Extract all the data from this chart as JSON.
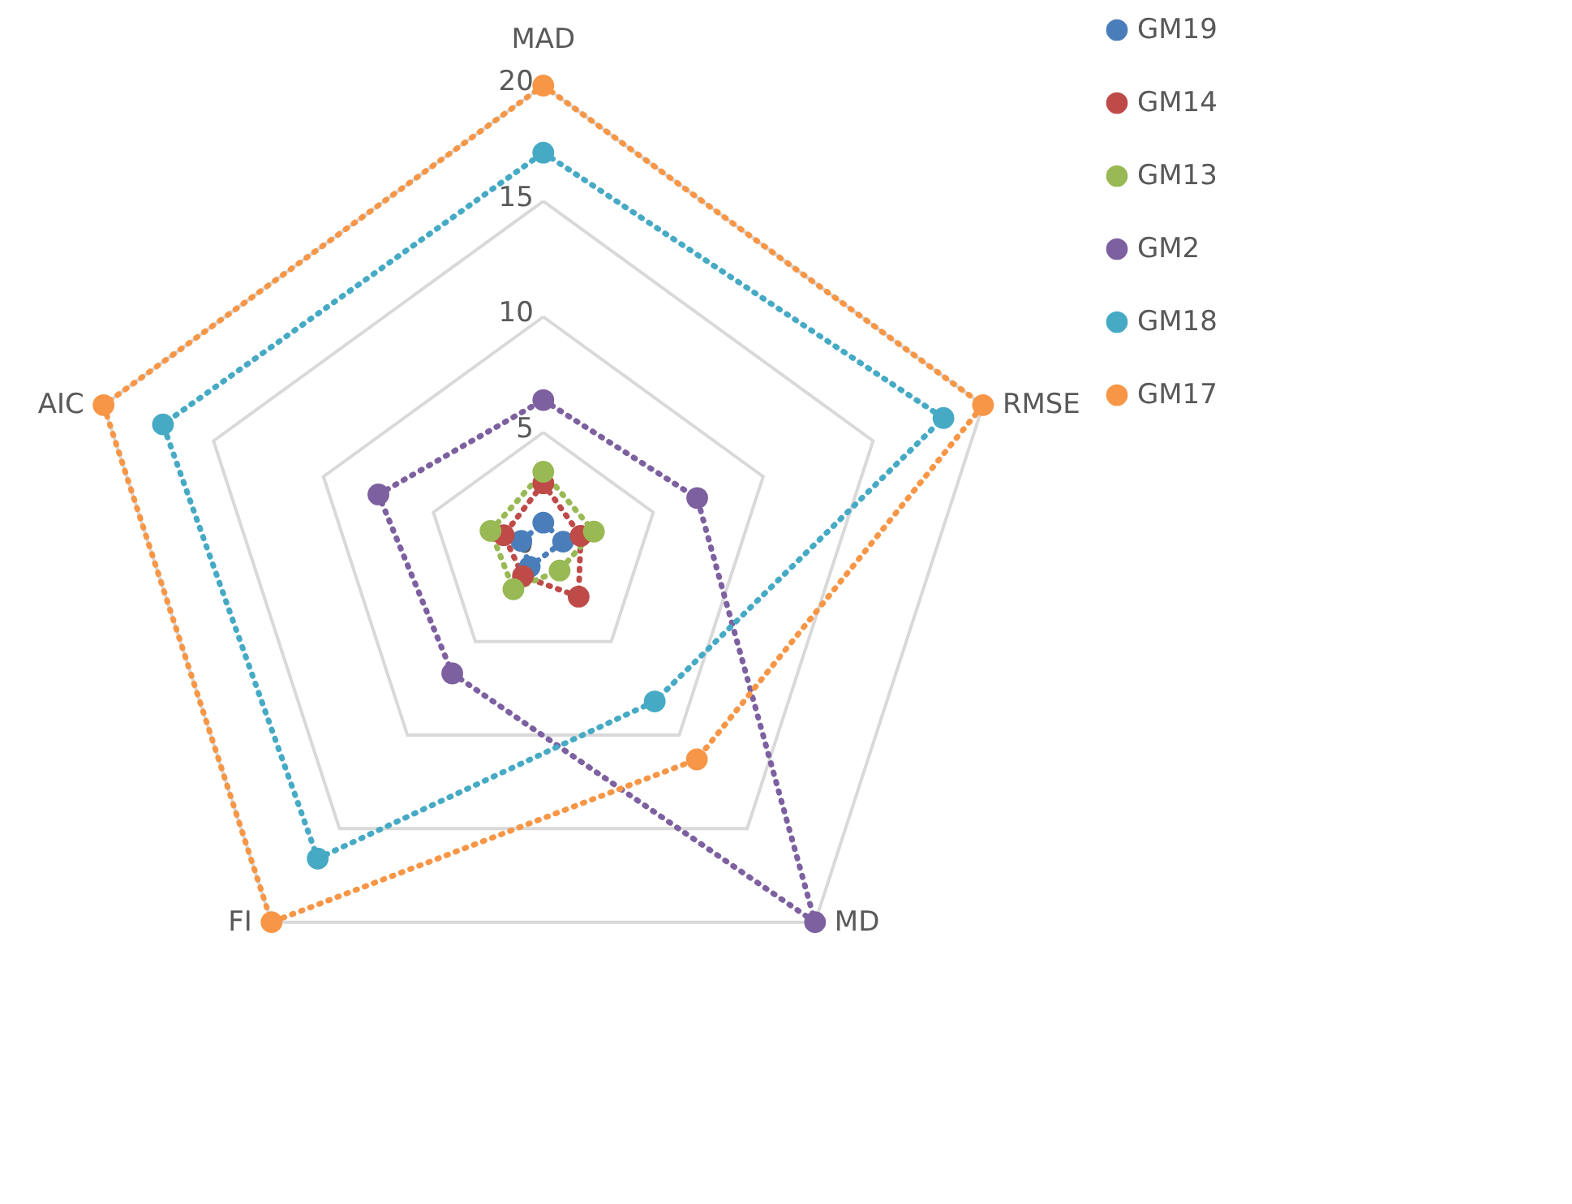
{
  "chart_data": {
    "type": "radar",
    "categories": [
      "MAD",
      "RMSE",
      "MD",
      "FI",
      "AIC"
    ],
    "series": [
      {
        "name": "GM19",
        "color": "#4a7ebb",
        "values": [
          1.1,
          0.9,
          null,
          1.0,
          1.0
        ]
      },
      {
        "name": "GM14",
        "color": "#be4b48",
        "values": [
          2.8,
          1.7,
          2.6,
          1.5,
          1.8
        ]
      },
      {
        "name": "GM13",
        "color": "#98b954",
        "values": [
          3.3,
          2.3,
          1.2,
          2.2,
          2.4
        ]
      },
      {
        "name": "GM2",
        "color": "#7d60a0",
        "values": [
          6.4,
          7.0,
          20,
          6.7,
          7.5
        ]
      },
      {
        "name": "GM18",
        "color": "#46aac5",
        "values": [
          17.1,
          18.2,
          8.2,
          16.6,
          17.3
        ]
      },
      {
        "name": "GM17",
        "color": "#f79646",
        "values": [
          20,
          20,
          11.3,
          20,
          20
        ]
      }
    ],
    "ylim": [
      0,
      20
    ],
    "yticks": [
      0,
      5,
      10,
      15,
      20
    ],
    "grid": true,
    "legend": "right",
    "marker": "circle",
    "line_style": "dotted"
  }
}
